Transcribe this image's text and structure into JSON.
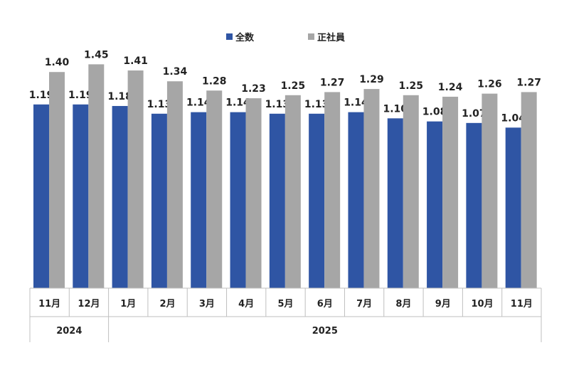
{
  "legend": [
    {
      "name": "全数",
      "color": "#2f55a4"
    },
    {
      "name": "正社員",
      "color": "#a6a6a6"
    }
  ],
  "chart_data": {
    "type": "bar",
    "categories": [
      "11月",
      "12月",
      "1月",
      "2月",
      "3月",
      "4月",
      "5月",
      "6月",
      "7月",
      "8月",
      "9月",
      "10月",
      "11月"
    ],
    "year_groups": [
      {
        "label": "2024",
        "span": 2
      },
      {
        "label": "2025",
        "span": 11
      }
    ],
    "series": [
      {
        "name": "全数",
        "color": "#2f55a4",
        "values": [
          1.19,
          1.19,
          1.18,
          1.13,
          1.14,
          1.14,
          1.13,
          1.13,
          1.14,
          1.1,
          1.08,
          1.07,
          1.04
        ]
      },
      {
        "name": "正社員",
        "color": "#a6a6a6",
        "values": [
          1.4,
          1.45,
          1.41,
          1.34,
          1.28,
          1.23,
          1.25,
          1.27,
          1.29,
          1.25,
          1.24,
          1.26,
          1.27
        ]
      }
    ],
    "ylim": [
      0,
      1.59
    ],
    "grid": false,
    "legend_position": "top"
  }
}
